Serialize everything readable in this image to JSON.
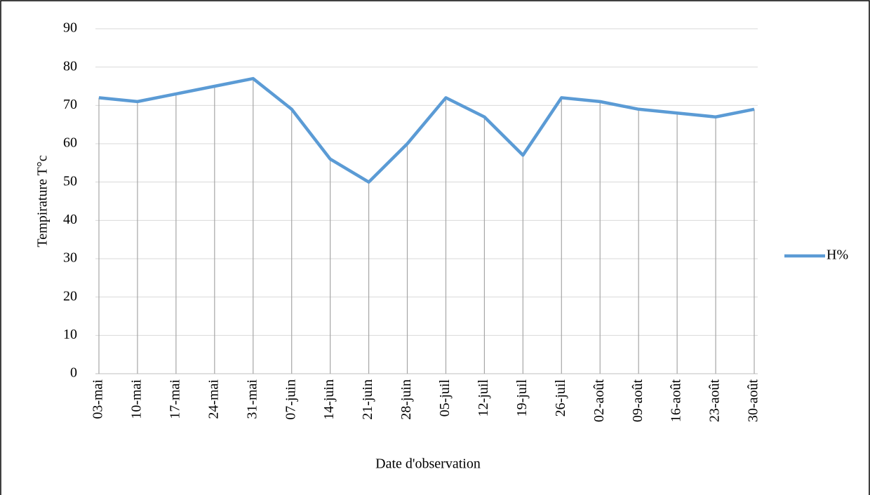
{
  "chart_data": {
    "type": "line",
    "categories": [
      "03-mai",
      "10-mai",
      "17-mai",
      "24-mai",
      "31-mai",
      "07-juin",
      "14-juin",
      "21-juin",
      "28-juin",
      "05-juil",
      "12-juil",
      "19-juil",
      "26-juil",
      "02-août",
      "09-août",
      "16-août",
      "23-août",
      "30-août"
    ],
    "series": [
      {
        "name": "H%",
        "color": "#5b9bd5",
        "values": [
          72,
          71,
          73,
          75,
          77,
          69,
          56,
          50,
          60,
          72,
          67,
          57,
          72,
          71,
          69,
          68,
          67,
          69
        ]
      }
    ],
    "ylim": [
      0,
      90
    ],
    "yticks": [
      0,
      10,
      20,
      30,
      40,
      50,
      60,
      70,
      80,
      90
    ],
    "grid": true,
    "drop_lines": true,
    "y_label": "Tempirature T°c",
    "x_label": "Date d'observation",
    "legend": "right"
  }
}
